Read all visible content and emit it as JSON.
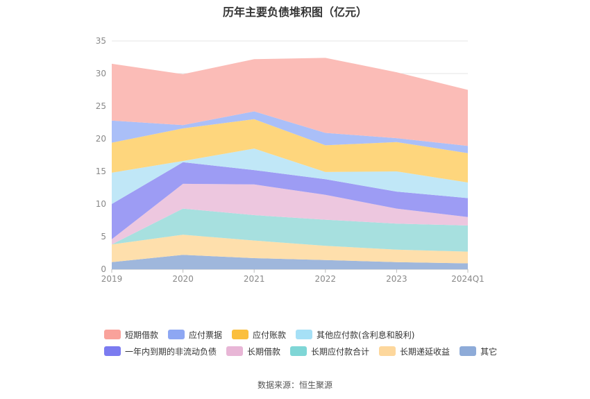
{
  "chart_data": {
    "type": "area",
    "stacked": true,
    "title": "历年主要负债堆积图（亿元）",
    "categories": [
      "2019",
      "2020",
      "2021",
      "2022",
      "2023",
      "2024Q1"
    ],
    "ylim": [
      0,
      35
    ],
    "yticks": [
      "0",
      "5",
      "10",
      "15",
      "20",
      "25",
      "30",
      "35"
    ],
    "grid": true,
    "legend_position": "bottom",
    "series": [
      {
        "name": "其它",
        "color": "#9fb7dc",
        "values": [
          1.1,
          2.2,
          1.7,
          1.4,
          1.1,
          0.9
        ]
      },
      {
        "name": "长期递延收益",
        "color": "#fedfac",
        "values": [
          2.7,
          3.1,
          2.7,
          2.2,
          1.9,
          1.8
        ]
      },
      {
        "name": "长期应付款合计",
        "color": "#a7e0df",
        "values": [
          0.0,
          4.0,
          3.9,
          4.0,
          4.0,
          4.0
        ]
      },
      {
        "name": "长期借款",
        "color": "#edc7df",
        "values": [
          0.8,
          3.8,
          4.7,
          3.8,
          2.3,
          1.3
        ]
      },
      {
        "name": "一年内到期的非流动负债",
        "color": "#9d9cf4",
        "values": [
          5.4,
          3.3,
          2.2,
          2.4,
          2.6,
          2.9
        ]
      },
      {
        "name": "其他应付款(含利息和股利)",
        "color": "#c0e7f7",
        "values": [
          4.8,
          0.2,
          3.3,
          1.1,
          3.1,
          2.4
        ]
      },
      {
        "name": "应付账款",
        "color": "#fed67d",
        "values": [
          4.6,
          5.0,
          4.5,
          4.1,
          4.5,
          4.5
        ]
      },
      {
        "name": "应付票据",
        "color": "#aabff8",
        "values": [
          3.4,
          0.5,
          1.2,
          1.9,
          0.6,
          1.1
        ]
      },
      {
        "name": "短期借款",
        "color": "#fbbcb7",
        "values": [
          8.7,
          7.8,
          8.0,
          11.5,
          10.1,
          8.6
        ]
      }
    ]
  },
  "legend": {
    "row1": [
      {
        "label": "短期借款",
        "color": "#f9a29b"
      },
      {
        "label": "应付票据",
        "color": "#8ea7f3"
      },
      {
        "label": "应付账款",
        "color": "#fbbf3d"
      },
      {
        "label": "其他应付款(含利息和股利)",
        "color": "#a6e0f6"
      }
    ],
    "row2": [
      {
        "label": "一年内到期的非流动负债",
        "color": "#7b7bf0"
      },
      {
        "label": "长期借款",
        "color": "#e8b6d6"
      },
      {
        "label": "长期应付款合计",
        "color": "#7fd6d6"
      },
      {
        "label": "长期递延收益",
        "color": "#fdd79c"
      },
      {
        "label": "其它",
        "color": "#8eabd8"
      }
    ]
  },
  "source": "数据来源：恒生聚源"
}
